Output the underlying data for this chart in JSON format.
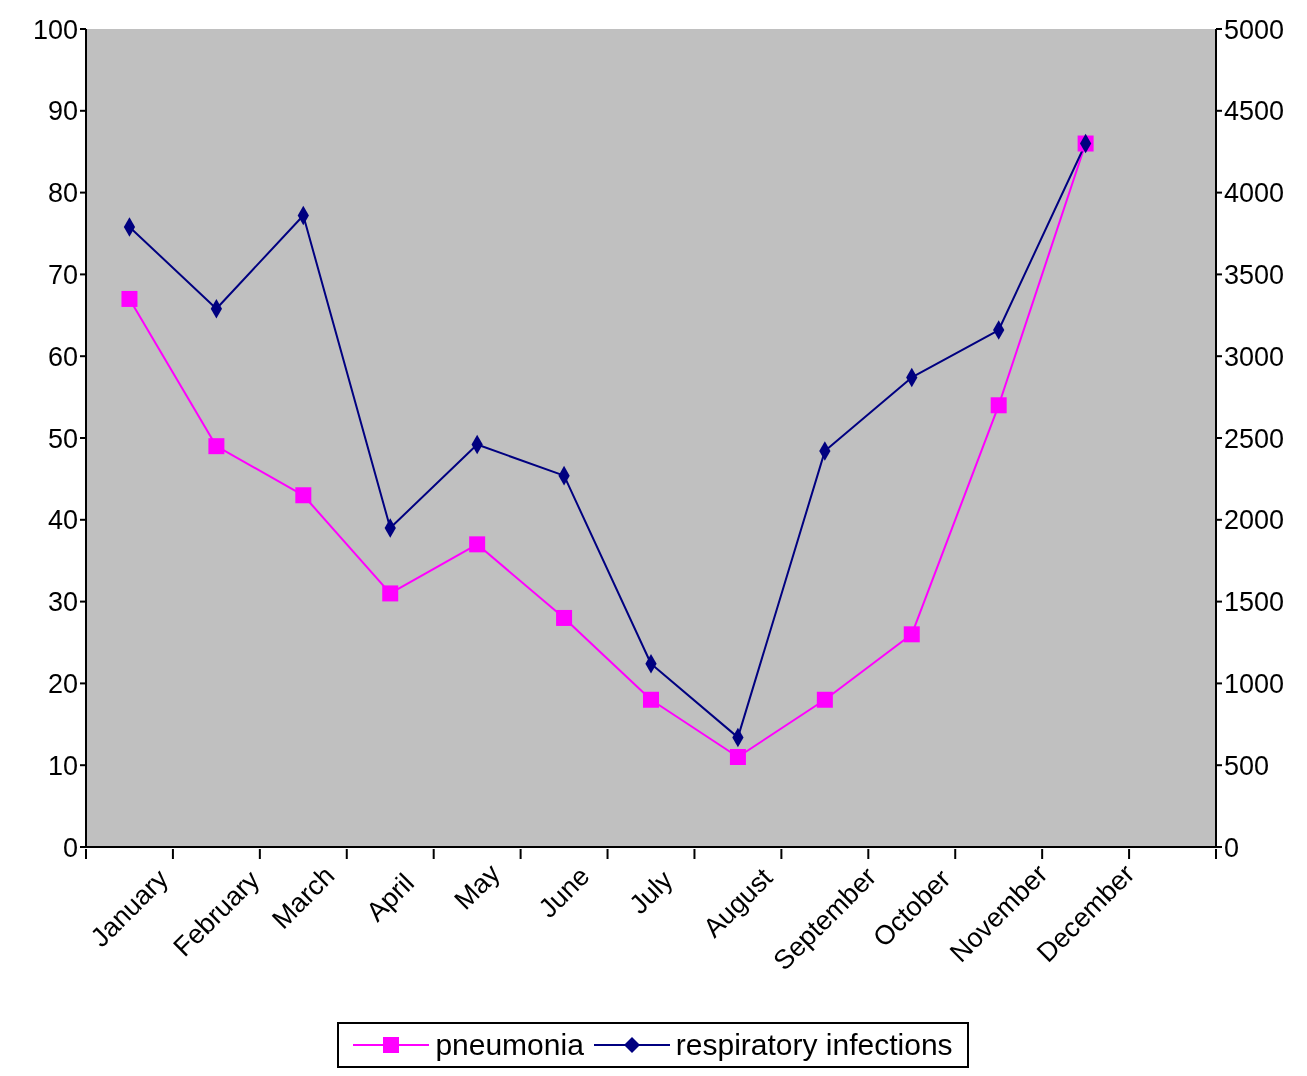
{
  "chart_data": {
    "type": "line",
    "categories": [
      "January",
      "February",
      "March",
      "April",
      "May",
      "June",
      "July",
      "August",
      "September",
      "October",
      "November",
      "December",
      null
    ],
    "series": [
      {
        "name": "pneumonia",
        "color": "#ff00ff",
        "marker": "square",
        "values": [
          67,
          49,
          43,
          31,
          37,
          28,
          18,
          11,
          18,
          26,
          54,
          86,
          null
        ]
      },
      {
        "name": "respiratory infections",
        "color": "#000080",
        "marker": "diamond",
        "axis": "y2",
        "values": [
          3790,
          3290,
          3860,
          1950,
          2460,
          2270,
          1120,
          670,
          2420,
          2870,
          3160,
          4300,
          null
        ]
      }
    ],
    "ylim": [
      0,
      100
    ],
    "yticks": [
      0,
      10,
      20,
      30,
      40,
      50,
      60,
      70,
      80,
      90,
      100
    ],
    "y2lim": [
      0,
      5000
    ],
    "y2ticks": [
      0,
      500,
      1000,
      1500,
      2000,
      2500,
      3000,
      3500,
      4000,
      4500,
      5000
    ],
    "grid": false,
    "legend": "bottom"
  }
}
